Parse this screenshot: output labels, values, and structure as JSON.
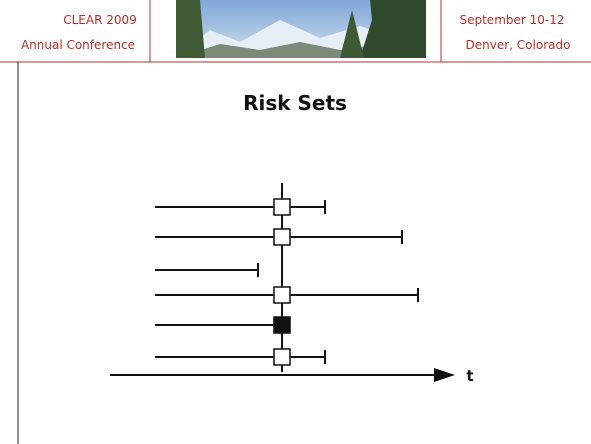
{
  "header": {
    "left": [
      "CLEAR 2009",
      "Annual Conference"
    ],
    "right": [
      "September 10-12",
      "Denver, Colorado"
    ]
  },
  "title": "Risk Sets",
  "diagram": {
    "axis_label": "t"
  }
}
